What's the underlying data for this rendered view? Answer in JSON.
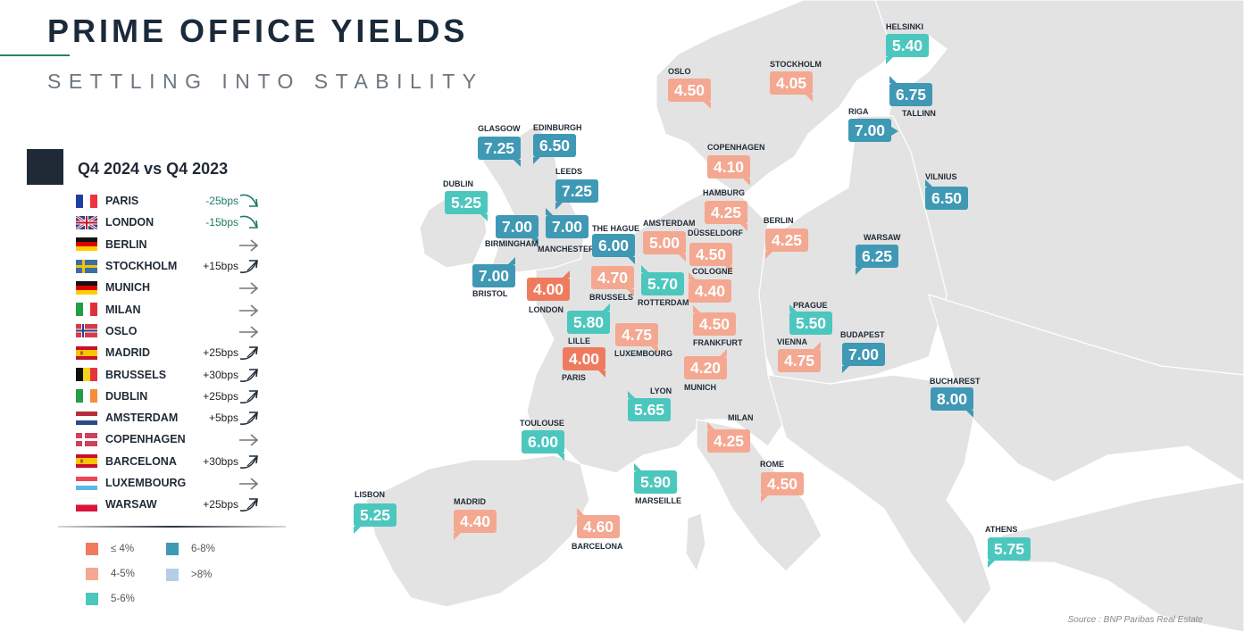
{
  "header": {
    "title": "PRIME OFFICE YIELDS",
    "subtitle": "SETTLING INTO STABILITY"
  },
  "panel": {
    "title": "Q4 2024 vs Q4 2023",
    "rows": [
      {
        "city": "PARIS",
        "flag": "france",
        "change": "-25bps",
        "direction": "down"
      },
      {
        "city": "LONDON",
        "flag": "uk",
        "change": "-15bps",
        "direction": "down"
      },
      {
        "city": "BERLIN",
        "flag": "germany",
        "change": "",
        "direction": "flat"
      },
      {
        "city": "STOCKHOLM",
        "flag": "sweden",
        "change": "+15bps",
        "direction": "up"
      },
      {
        "city": "MUNICH",
        "flag": "germany",
        "change": "",
        "direction": "flat"
      },
      {
        "city": "MILAN",
        "flag": "italy",
        "change": "",
        "direction": "flat"
      },
      {
        "city": "OSLO",
        "flag": "norway",
        "change": "",
        "direction": "flat"
      },
      {
        "city": "MADRID",
        "flag": "spain",
        "change": "+25bps",
        "direction": "up"
      },
      {
        "city": "BRUSSELS",
        "flag": "belgium",
        "change": "+30bps",
        "direction": "up"
      },
      {
        "city": "DUBLIN",
        "flag": "ireland",
        "change": "+25bps",
        "direction": "up"
      },
      {
        "city": "AMSTERDAM",
        "flag": "netherlands",
        "change": "+5bps",
        "direction": "up"
      },
      {
        "city": "COPENHAGEN",
        "flag": "denmark",
        "change": "",
        "direction": "flat"
      },
      {
        "city": "BARCELONA",
        "flag": "spain",
        "change": "+30bps",
        "direction": "up"
      },
      {
        "city": "LUXEMBOURG",
        "flag": "luxembourg",
        "change": "",
        "direction": "flat"
      },
      {
        "city": "WARSAW",
        "flag": "poland",
        "change": "+25bps",
        "direction": "up"
      }
    ]
  },
  "legend": [
    {
      "label": "≤ 4%",
      "color": "#ef7b5e"
    },
    {
      "label": "4-5%",
      "color": "#f4a891"
    },
    {
      "label": "5-6%",
      "color": "#4cc7be"
    },
    {
      "label": "6-8%",
      "color": "#3f98b4"
    },
    {
      "label": ">8%",
      "color": "#b6cde8"
    }
  ],
  "colors": {
    "le4": "#ef7b5e",
    "4to5": "#f4a891",
    "5to6": "#4cc7be",
    "6to8": "#3f98b4",
    "gt8": "#b6cde8",
    "land": "#e3e3e3",
    "sea": "#ffffff",
    "dark": "#1f2a36"
  },
  "cities": [
    {
      "name": "HELSINKI",
      "value": "5.40",
      "band": "5to6"
    },
    {
      "name": "OSLO",
      "value": "4.50",
      "band": "4to5"
    },
    {
      "name": "STOCKHOLM",
      "value": "4.05",
      "band": "4to5"
    },
    {
      "name": "TALLINN",
      "value": "6.75",
      "band": "6to8"
    },
    {
      "name": "RIGA",
      "value": "7.00",
      "band": "6to8"
    },
    {
      "name": "GLASGOW",
      "value": "7.25",
      "band": "6to8"
    },
    {
      "name": "EDINBURGH",
      "value": "6.50",
      "band": "6to8"
    },
    {
      "name": "COPENHAGEN",
      "value": "4.10",
      "band": "4to5"
    },
    {
      "name": "LEEDS",
      "value": "7.25",
      "band": "6to8"
    },
    {
      "name": "VILNIUS",
      "value": "6.50",
      "band": "6to8"
    },
    {
      "name": "DUBLIN",
      "value": "5.25",
      "band": "5to6"
    },
    {
      "name": "HAMBURG",
      "value": "4.25",
      "band": "4to5"
    },
    {
      "name": "BIRMINGHAM",
      "value": "7.00",
      "band": "6to8"
    },
    {
      "name": "MANCHESTER",
      "value": "7.00",
      "band": "6to8"
    },
    {
      "name": "THE HAGUE",
      "value": "6.00",
      "band": "6to8"
    },
    {
      "name": "AMSTERDAM",
      "value": "5.00",
      "band": "4to5"
    },
    {
      "name": "BERLIN",
      "value": "4.25",
      "band": "4to5"
    },
    {
      "name": "DÜSSELDORF",
      "value": "4.50",
      "band": "4to5"
    },
    {
      "name": "WARSAW",
      "value": "6.25",
      "band": "6to8"
    },
    {
      "name": "BRISTOL",
      "value": "7.00",
      "band": "6to8"
    },
    {
      "name": "LONDON",
      "value": "4.00",
      "band": "le4"
    },
    {
      "name": "BRUSSELS",
      "value": "4.70",
      "band": "4to5"
    },
    {
      "name": "ROTTERDAM",
      "value": "5.70",
      "band": "5to6"
    },
    {
      "name": "COLOGNE",
      "value": "4.40",
      "band": "4to5"
    },
    {
      "name": "LILLE",
      "value": "5.80",
      "band": "5to6"
    },
    {
      "name": "PRAGUE",
      "value": "5.50",
      "band": "5to6"
    },
    {
      "name": "LUXEMBOURG",
      "value": "4.75",
      "band": "4to5"
    },
    {
      "name": "FRANKFURT",
      "value": "4.50",
      "band": "4to5"
    },
    {
      "name": "VIENNA",
      "value": "4.75",
      "band": "4to5"
    },
    {
      "name": "BUDAPEST",
      "value": "7.00",
      "band": "6to8"
    },
    {
      "name": "PARIS",
      "value": "4.00",
      "band": "le4"
    },
    {
      "name": "MUNICH",
      "value": "4.20",
      "band": "4to5"
    },
    {
      "name": "BUCHAREST",
      "value": "8.00",
      "band": "6to8"
    },
    {
      "name": "LYON",
      "value": "5.65",
      "band": "5to6"
    },
    {
      "name": "TOULOUSE",
      "value": "6.00",
      "band": "5to6"
    },
    {
      "name": "MILAN",
      "value": "4.25",
      "band": "4to5"
    },
    {
      "name": "ROME",
      "value": "4.50",
      "band": "4to5"
    },
    {
      "name": "MARSEILLE",
      "value": "5.90",
      "band": "5to6"
    },
    {
      "name": "LISBON",
      "value": "5.25",
      "band": "5to6"
    },
    {
      "name": "MADRID",
      "value": "4.40",
      "band": "4to5"
    },
    {
      "name": "BARCELONA",
      "value": "4.60",
      "band": "4to5"
    },
    {
      "name": "ATHENS",
      "value": "5.75",
      "band": "5to6"
    }
  ],
  "footer": {
    "source": "Source : BNP Paribas Real Estate"
  }
}
